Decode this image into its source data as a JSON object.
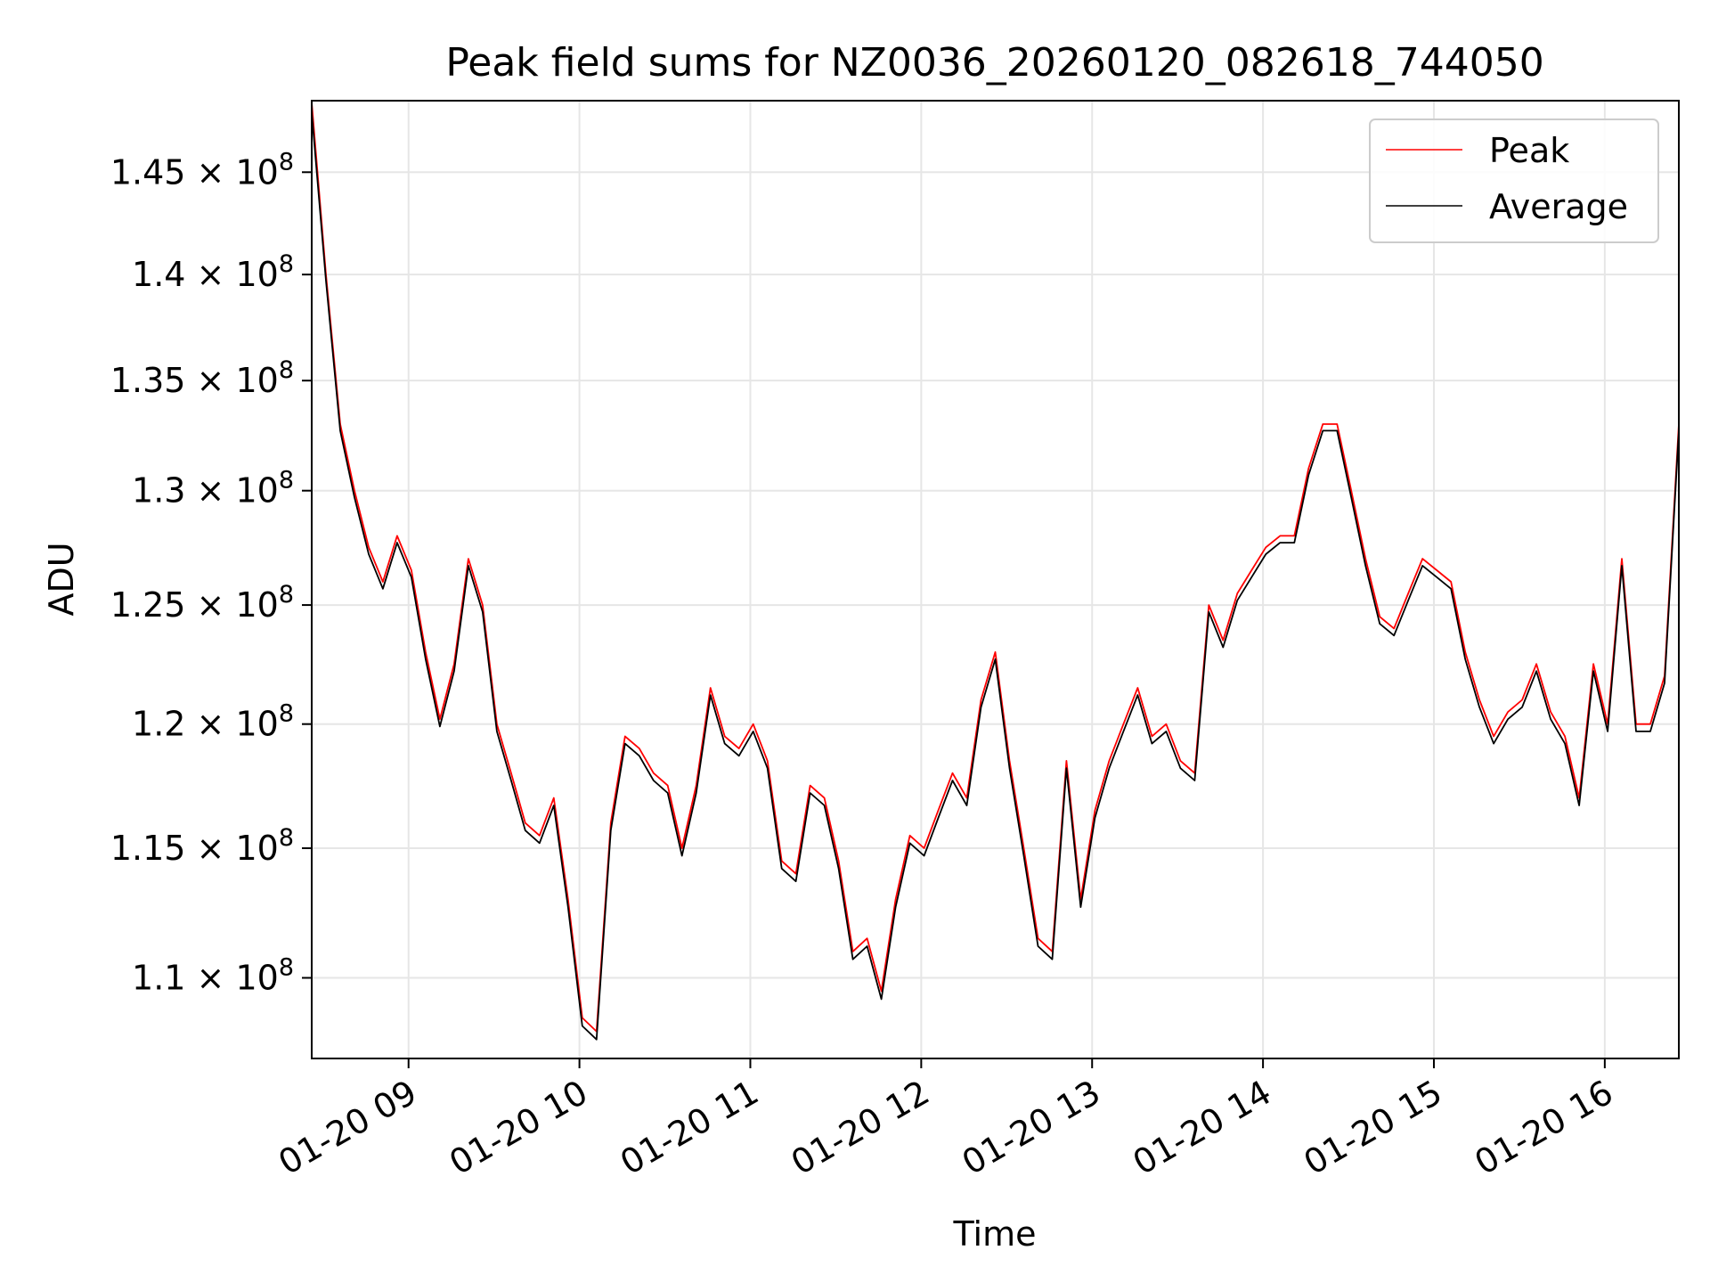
{
  "chart_data": {
    "type": "line",
    "title": "Peak field sums for NZ0036_20260120_082618_744050",
    "xlabel": "Time",
    "ylabel": "ADU",
    "x_range": [
      "2026-01-20T08:26",
      "2026-01-20T16:26"
    ],
    "ylim": [
      107000000,
      148600000
    ],
    "y_scale": "log",
    "grid": true,
    "legend_position": "top-right",
    "x_ticks": [
      {
        "t": "2026-01-20T09:00",
        "label": "01-20 09"
      },
      {
        "t": "2026-01-20T10:00",
        "label": "01-20 10"
      },
      {
        "t": "2026-01-20T11:00",
        "label": "01-20 11"
      },
      {
        "t": "2026-01-20T12:00",
        "label": "01-20 12"
      },
      {
        "t": "2026-01-20T13:00",
        "label": "01-20 13"
      },
      {
        "t": "2026-01-20T14:00",
        "label": "01-20 14"
      },
      {
        "t": "2026-01-20T15:00",
        "label": "01-20 15"
      },
      {
        "t": "2026-01-20T16:00",
        "label": "01-20 16"
      }
    ],
    "y_ticks": [
      {
        "value": 110000000,
        "mantissa": "1.1"
      },
      {
        "value": 115000000,
        "mantissa": "1.15"
      },
      {
        "value": 120000000,
        "mantissa": "1.2"
      },
      {
        "value": 125000000,
        "mantissa": "1.25"
      },
      {
        "value": 130000000,
        "mantissa": "1.3"
      },
      {
        "value": 135000000,
        "mantissa": "1.35"
      },
      {
        "value": 140000000,
        "mantissa": "1.4"
      },
      {
        "value": 145000000,
        "mantissa": "1.45"
      }
    ],
    "y_tick_suffix": "× 10",
    "y_tick_exponent": "8",
    "series": [
      {
        "name": "Peak",
        "color": "#ff0000",
        "x": [
          "2026-01-20T08:26",
          "2026-01-20T08:31",
          "2026-01-20T08:36",
          "2026-01-20T08:41",
          "2026-01-20T08:46",
          "2026-01-20T08:51",
          "2026-01-20T08:56",
          "2026-01-20T09:01",
          "2026-01-20T09:06",
          "2026-01-20T09:11",
          "2026-01-20T09:16",
          "2026-01-20T09:21",
          "2026-01-20T09:26",
          "2026-01-20T09:31",
          "2026-01-20T09:36",
          "2026-01-20T09:41",
          "2026-01-20T09:46",
          "2026-01-20T09:51",
          "2026-01-20T09:56",
          "2026-01-20T10:01",
          "2026-01-20T10:06",
          "2026-01-20T10:11",
          "2026-01-20T10:16",
          "2026-01-20T10:21",
          "2026-01-20T10:26",
          "2026-01-20T10:31",
          "2026-01-20T10:36",
          "2026-01-20T10:41",
          "2026-01-20T10:46",
          "2026-01-20T10:51",
          "2026-01-20T10:56",
          "2026-01-20T11:01",
          "2026-01-20T11:06",
          "2026-01-20T11:11",
          "2026-01-20T11:16",
          "2026-01-20T11:21",
          "2026-01-20T11:26",
          "2026-01-20T11:31",
          "2026-01-20T11:36",
          "2026-01-20T11:41",
          "2026-01-20T11:46",
          "2026-01-20T11:51",
          "2026-01-20T11:56",
          "2026-01-20T12:01",
          "2026-01-20T12:06",
          "2026-01-20T12:11",
          "2026-01-20T12:16",
          "2026-01-20T12:21",
          "2026-01-20T12:26",
          "2026-01-20T12:31",
          "2026-01-20T12:36",
          "2026-01-20T12:41",
          "2026-01-20T12:46",
          "2026-01-20T12:51",
          "2026-01-20T12:56",
          "2026-01-20T13:01",
          "2026-01-20T13:06",
          "2026-01-20T13:11",
          "2026-01-20T13:16",
          "2026-01-20T13:21",
          "2026-01-20T13:26",
          "2026-01-20T13:31",
          "2026-01-20T13:36",
          "2026-01-20T13:41",
          "2026-01-20T13:46",
          "2026-01-20T13:51",
          "2026-01-20T13:56",
          "2026-01-20T14:01",
          "2026-01-20T14:06",
          "2026-01-20T14:11",
          "2026-01-20T14:16",
          "2026-01-20T14:21",
          "2026-01-20T14:26",
          "2026-01-20T14:31",
          "2026-01-20T14:36",
          "2026-01-20T14:41",
          "2026-01-20T14:46",
          "2026-01-20T14:51",
          "2026-01-20T14:56",
          "2026-01-20T15:01",
          "2026-01-20T15:06",
          "2026-01-20T15:11",
          "2026-01-20T15:16",
          "2026-01-20T15:21",
          "2026-01-20T15:26",
          "2026-01-20T15:31",
          "2026-01-20T15:36",
          "2026-01-20T15:41",
          "2026-01-20T15:46",
          "2026-01-20T15:51",
          "2026-01-20T15:56",
          "2026-01-20T16:01",
          "2026-01-20T16:06",
          "2026-01-20T16:11",
          "2026-01-20T16:16",
          "2026-01-20T16:21",
          "2026-01-20T16:26"
        ],
        "values": [
          148500000,
          140000000,
          133000000,
          130000000,
          127500000,
          126000000,
          128000000,
          126500000,
          123000000,
          120200000,
          122500000,
          127000000,
          125000000,
          120000000,
          118000000,
          116000000,
          115500000,
          117000000,
          113000000,
          108500000,
          108000000,
          116000000,
          119500000,
          119000000,
          118000000,
          117500000,
          115000000,
          117500000,
          121500000,
          119500000,
          119000000,
          120000000,
          118500000,
          114500000,
          114000000,
          117500000,
          117000000,
          114500000,
          111000000,
          111500000,
          109500000,
          113000000,
          115500000,
          115000000,
          116500000,
          118000000,
          117000000,
          121000000,
          123000000,
          118500000,
          115000000,
          111500000,
          111000000,
          118500000,
          113000000,
          116500000,
          118500000,
          120000000,
          121500000,
          119500000,
          120000000,
          118500000,
          118000000,
          125000000,
          123500000,
          125500000,
          126500000,
          127500000,
          128000000,
          128000000,
          131000000,
          133000000,
          133000000,
          130000000,
          127000000,
          124500000,
          124000000,
          125500000,
          127000000,
          126500000,
          126000000,
          123000000,
          121000000,
          119500000,
          120500000,
          121000000,
          122500000,
          120500000,
          119500000,
          117000000,
          122500000,
          120000000,
          127000000,
          120000000,
          120000000,
          122000000,
          133000000
        ]
      },
      {
        "name": "Average",
        "color": "#000000",
        "x": [
          "2026-01-20T08:26",
          "2026-01-20T08:31",
          "2026-01-20T08:36",
          "2026-01-20T08:41",
          "2026-01-20T08:46",
          "2026-01-20T08:51",
          "2026-01-20T08:56",
          "2026-01-20T09:01",
          "2026-01-20T09:06",
          "2026-01-20T09:11",
          "2026-01-20T09:16",
          "2026-01-20T09:21",
          "2026-01-20T09:26",
          "2026-01-20T09:31",
          "2026-01-20T09:36",
          "2026-01-20T09:41",
          "2026-01-20T09:46",
          "2026-01-20T09:51",
          "2026-01-20T09:56",
          "2026-01-20T10:01",
          "2026-01-20T10:06",
          "2026-01-20T10:11",
          "2026-01-20T10:16",
          "2026-01-20T10:21",
          "2026-01-20T10:26",
          "2026-01-20T10:31",
          "2026-01-20T10:36",
          "2026-01-20T10:41",
          "2026-01-20T10:46",
          "2026-01-20T10:51",
          "2026-01-20T10:56",
          "2026-01-20T11:01",
          "2026-01-20T11:06",
          "2026-01-20T11:11",
          "2026-01-20T11:16",
          "2026-01-20T11:21",
          "2026-01-20T11:26",
          "2026-01-20T11:31",
          "2026-01-20T11:36",
          "2026-01-20T11:41",
          "2026-01-20T11:46",
          "2026-01-20T11:51",
          "2026-01-20T11:56",
          "2026-01-20T12:01",
          "2026-01-20T12:06",
          "2026-01-20T12:11",
          "2026-01-20T12:16",
          "2026-01-20T12:21",
          "2026-01-20T12:26",
          "2026-01-20T12:31",
          "2026-01-20T12:36",
          "2026-01-20T12:41",
          "2026-01-20T12:46",
          "2026-01-20T12:51",
          "2026-01-20T12:56",
          "2026-01-20T13:01",
          "2026-01-20T13:06",
          "2026-01-20T13:11",
          "2026-01-20T13:16",
          "2026-01-20T13:21",
          "2026-01-20T13:26",
          "2026-01-20T13:31",
          "2026-01-20T13:36",
          "2026-01-20T13:41",
          "2026-01-20T13:46",
          "2026-01-20T13:51",
          "2026-01-20T13:56",
          "2026-01-20T14:01",
          "2026-01-20T14:06",
          "2026-01-20T14:11",
          "2026-01-20T14:16",
          "2026-01-20T14:21",
          "2026-01-20T14:26",
          "2026-01-20T14:31",
          "2026-01-20T14:36",
          "2026-01-20T14:41",
          "2026-01-20T14:46",
          "2026-01-20T14:51",
          "2026-01-20T14:56",
          "2026-01-20T15:01",
          "2026-01-20T15:06",
          "2026-01-20T15:11",
          "2026-01-20T15:16",
          "2026-01-20T15:21",
          "2026-01-20T15:26",
          "2026-01-20T15:31",
          "2026-01-20T15:36",
          "2026-01-20T15:41",
          "2026-01-20T15:46",
          "2026-01-20T15:51",
          "2026-01-20T15:56",
          "2026-01-20T16:01",
          "2026-01-20T16:06",
          "2026-01-20T16:11",
          "2026-01-20T16:16",
          "2026-01-20T16:21",
          "2026-01-20T16:26"
        ],
        "values": [
          148000000,
          139700000,
          132700000,
          129700000,
          127200000,
          125700000,
          127700000,
          126200000,
          122700000,
          119900000,
          122200000,
          126700000,
          124700000,
          119700000,
          117700000,
          115700000,
          115200000,
          116700000,
          112700000,
          108200000,
          107700000,
          115700000,
          119200000,
          118700000,
          117700000,
          117200000,
          114700000,
          117200000,
          121200000,
          119200000,
          118700000,
          119700000,
          118200000,
          114200000,
          113700000,
          117200000,
          116700000,
          114200000,
          110700000,
          111200000,
          109200000,
          112700000,
          115200000,
          114700000,
          116200000,
          117700000,
          116700000,
          120700000,
          122700000,
          118200000,
          114700000,
          111200000,
          110700000,
          118200000,
          112700000,
          116200000,
          118200000,
          119700000,
          121200000,
          119200000,
          119700000,
          118200000,
          117700000,
          124700000,
          123200000,
          125200000,
          126200000,
          127200000,
          127700000,
          127700000,
          130700000,
          132700000,
          132700000,
          129700000,
          126700000,
          124200000,
          123700000,
          125200000,
          126700000,
          126200000,
          125700000,
          122700000,
          120700000,
          119200000,
          120200000,
          120700000,
          122200000,
          120200000,
          119200000,
          116700000,
          122200000,
          119700000,
          126700000,
          119700000,
          119700000,
          121700000,
          132700000
        ]
      }
    ]
  }
}
